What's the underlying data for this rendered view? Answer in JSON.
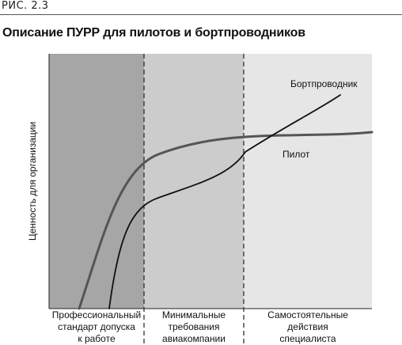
{
  "figure_label": "РИС. 2.3",
  "title": "Описание ПУРР для пилотов и бортпроводников",
  "y_axis_label": "Ценность для организации",
  "zones": [
    {
      "id": "zone-1",
      "label_lines": [
        "Профессиональный",
        "стандарт допуска",
        "к работе"
      ],
      "color": "#a6a6a6"
    },
    {
      "id": "zone-2",
      "label_lines": [
        "Минимальные",
        "требования",
        "авиакомпании"
      ],
      "color": "#cccccc"
    },
    {
      "id": "zone-3",
      "label_lines": [
        "Самостоятельные",
        "действия",
        "специалиста"
      ],
      "color": "#e6e6e6"
    }
  ],
  "curves": [
    {
      "id": "pilot",
      "label": "Пилот",
      "color": "#555555"
    },
    {
      "id": "flight-attendant",
      "label": "Бортпроводник",
      "color": "#111111"
    }
  ]
}
